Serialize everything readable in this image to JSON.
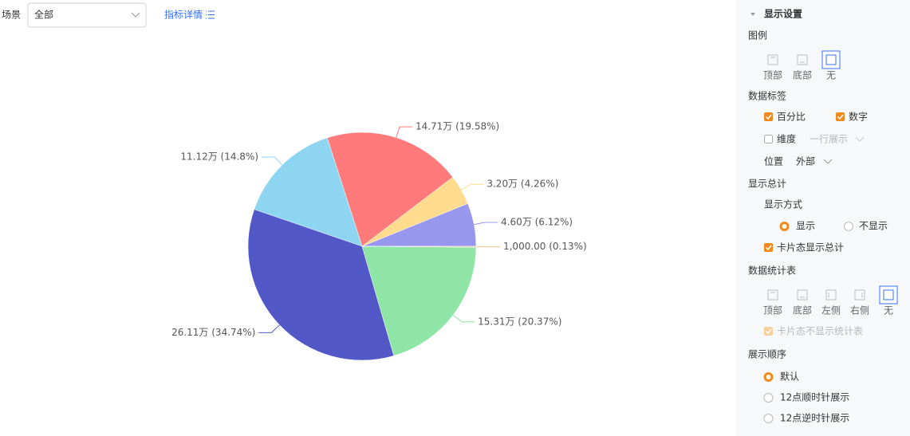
{
  "toolbar": {
    "scene_label": "场景",
    "scene_value": "全部",
    "detail_link": "指标详情"
  },
  "chart_data": {
    "type": "pie",
    "values": [
      46000,
      32000,
      147100,
      111200,
      261100,
      153100,
      1000
    ],
    "value_labels": [
      "4.60万 (6.12%)",
      "3.20万 (4.26%)",
      "14.71万 (19.58%)",
      "11.12万 (14.8%)",
      "26.11万 (34.74%)",
      "15.31万 (20.37%)",
      "1,000.00 (0.13%)"
    ],
    "colors": [
      "#9797ee",
      "#ffdb8e",
      "#ff7b7b",
      "#8dd5f1",
      "#5358c9",
      "#8fe5a6",
      "#f7c48c"
    ]
  },
  "settings": {
    "title": "显示设置",
    "legend": {
      "label": "图例",
      "options": [
        "顶部",
        "底部",
        "无"
      ]
    },
    "data_labels": {
      "label": "数据标签",
      "percent": "百分比",
      "number": "数字",
      "dimension": "维度",
      "one_line": "一行展示",
      "position_label": "位置",
      "position_value": "外部"
    },
    "total": {
      "label": "显示总计",
      "mode_label": "显示方式",
      "show": "显示",
      "hide": "不显示",
      "card_total": "卡片态显示总计"
    },
    "stat_table": {
      "label": "数据统计表",
      "options": [
        "顶部",
        "底部",
        "左侧",
        "右侧",
        "无"
      ],
      "card_hide": "卡片态不显示统计表"
    },
    "order": {
      "label": "展示顺序",
      "options": [
        "默认",
        "12点顺时针展示",
        "12点逆时针展示"
      ]
    }
  }
}
